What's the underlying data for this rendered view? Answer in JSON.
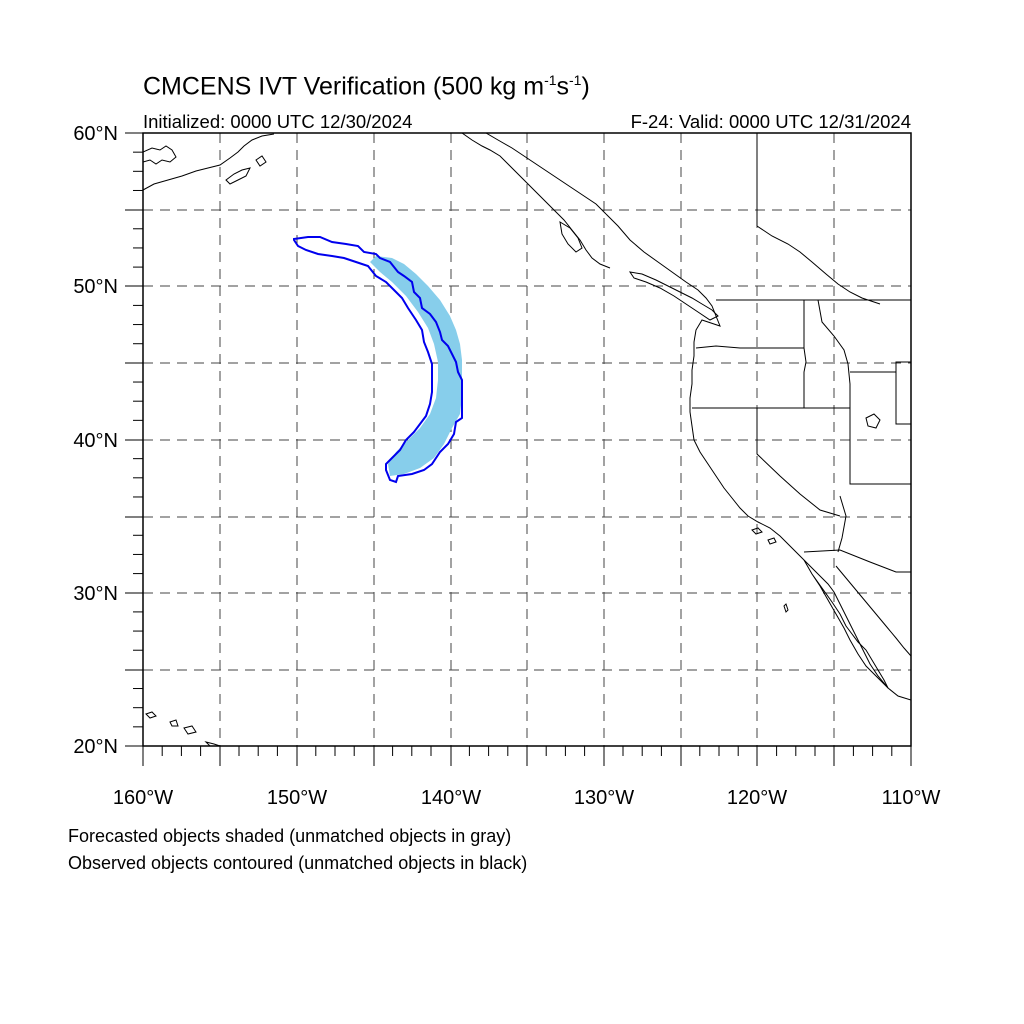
{
  "header": {
    "title_main": "CMCENS IVT Verification (500 kg m",
    "title_exp1": "-1",
    "title_mid": "s",
    "title_exp2": "-1",
    "title_end": ")",
    "initialized": "Initialized: 0000 UTC 12/30/2024",
    "valid": "F-24: Valid: 0000 UTC 12/31/2024"
  },
  "map": {
    "lon_range": [
      -160,
      -110
    ],
    "lat_range": [
      20,
      60
    ],
    "grid_style": "dashed",
    "y_tick_labels": [
      {
        "lat": 60,
        "label": "60°N"
      },
      {
        "lat": 50,
        "label": "50°N"
      },
      {
        "lat": 40,
        "label": "40°N"
      },
      {
        "lat": 30,
        "label": "30°N"
      },
      {
        "lat": 20,
        "label": "20°N"
      }
    ],
    "x_tick_labels": [
      {
        "lon": -160,
        "label": "160°W"
      },
      {
        "lon": -150,
        "label": "150°W"
      },
      {
        "lon": -140,
        "label": "140°W"
      },
      {
        "lon": -130,
        "label": "130°W"
      },
      {
        "lon": -120,
        "label": "120°W"
      },
      {
        "lon": -110,
        "label": "110°W"
      }
    ],
    "forecast_color": "#87ceeb",
    "observed_color": "#0000ee",
    "coast_color": "#000000"
  },
  "legend": {
    "line1": "Forecasted objects shaded (unmatched objects in gray)",
    "line2": "Observed objects contoured (unmatched objects in black)"
  }
}
